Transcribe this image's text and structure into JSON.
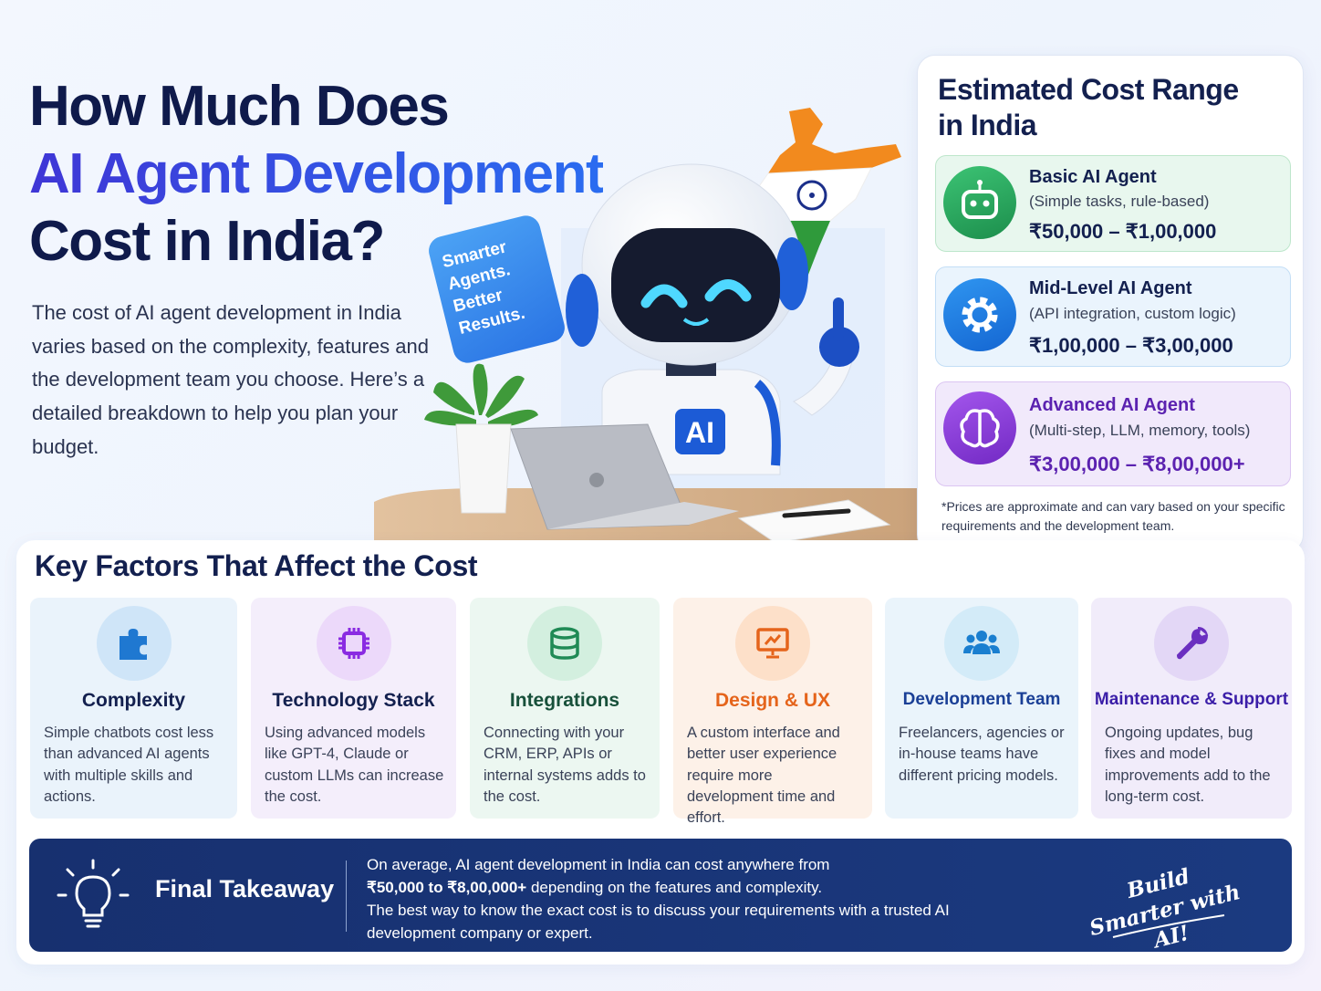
{
  "header": {
    "title_lines": [
      "How Much Does",
      "AI Agent Development",
      "Cost in India?"
    ],
    "intro": "The cost of AI agent development in India varies based on the complexity, features and the development team you choose. Here’s a detailed breakdown to help you plan your budget."
  },
  "illustration": {
    "bubble": "Smarter Agents. Better Results.",
    "badge": "AI"
  },
  "cost_panel": {
    "title": "Estimated Cost Range in India",
    "tiers": [
      {
        "name": "Basic AI Agent",
        "desc": "(Simple tasks, rule-based)",
        "price": "₹50,000 – ₹1,00,000"
      },
      {
        "name": "Mid-Level AI Agent",
        "desc": "(API integration, custom logic)",
        "price": "₹1,00,000 – ₹3,00,000"
      },
      {
        "name": "Advanced AI Agent",
        "desc": "(Multi-step, LLM, memory, tools)",
        "price": "₹3,00,000 – ₹8,00,000+"
      }
    ],
    "note": "*Prices are approximate and can vary based on your specific requirements and the development team."
  },
  "factors": {
    "title": "Key Factors That Affect the Cost",
    "items": [
      {
        "title": "Complexity",
        "text": "Simple chatbots cost less than advanced AI agents with multiple skills and actions."
      },
      {
        "title": "Technology Stack",
        "text": "Using advanced models like GPT-4, Claude or custom LLMs can increase the cost."
      },
      {
        "title": "Integrations",
        "text": "Connecting with your CRM, ERP, APIs or internal systems adds to the cost."
      },
      {
        "title": "Design & UX",
        "text": "A custom interface and better user experience require more development time and effort."
      },
      {
        "title": "Development Team",
        "text": "Freelancers, agencies or in-house teams have different pricing models."
      },
      {
        "title": "Maintenance & Support",
        "text": "Ongoing updates, bug fixes and model improvements add to the long-term cost."
      }
    ]
  },
  "takeaway": {
    "title": "Final Takeaway",
    "line_1": "On average, AI agent development in India can cost anywhere from",
    "highlight": "₹50,000 to ₹8,00,000+",
    "line_2": "depending on the features and complexity.",
    "line_3": "The best way to know the exact cost is to discuss your requirements with a trusted AI development company or expert.",
    "slogan": "Build Smarter with AI!"
  }
}
